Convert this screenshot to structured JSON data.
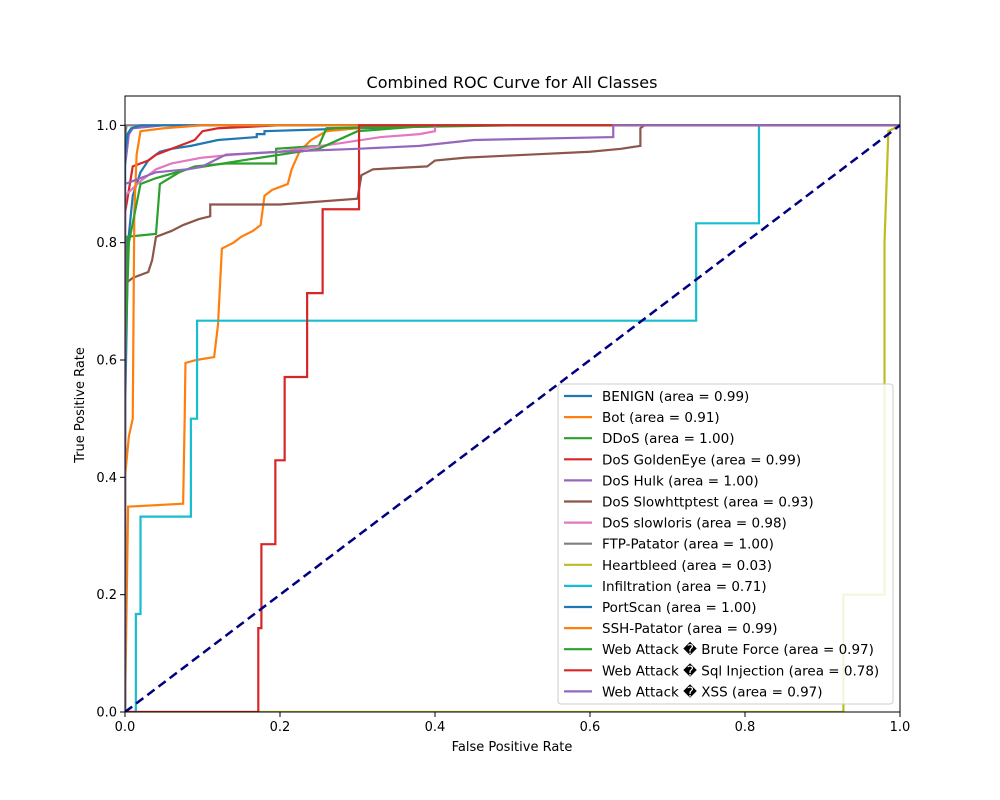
{
  "chart_data": {
    "type": "line",
    "title": "Combined ROC Curve for All Classes",
    "xlabel": "False Positive Rate",
    "ylabel": "True Positive Rate",
    "xlim": [
      0.0,
      1.0
    ],
    "ylim": [
      0.0,
      1.05
    ],
    "xticks": [
      "0.0",
      "0.2",
      "0.4",
      "0.6",
      "0.8",
      "1.0"
    ],
    "yticks": [
      "0.0",
      "0.2",
      "0.4",
      "0.6",
      "0.8",
      "1.0"
    ],
    "grid": false,
    "legend_position": "lower-right",
    "diagonal": {
      "color": "#000080",
      "style": "dashed",
      "points": [
        [
          0,
          0
        ],
        [
          1,
          1
        ]
      ]
    },
    "series": [
      {
        "name": "BENIGN (area = 0.99)",
        "color": "#1f77b4",
        "points": [
          [
            0,
            0
          ],
          [
            0.0,
            0.5
          ],
          [
            0.004,
            0.8
          ],
          [
            0.01,
            0.88
          ],
          [
            0.02,
            0.92
          ],
          [
            0.03,
            0.94
          ],
          [
            0.045,
            0.955
          ],
          [
            0.06,
            0.96
          ],
          [
            0.085,
            0.965
          ],
          [
            0.12,
            0.975
          ],
          [
            0.17,
            0.98
          ],
          [
            0.17,
            0.985
          ],
          [
            0.18,
            0.985
          ],
          [
            0.18,
            0.99
          ],
          [
            0.3,
            0.995
          ],
          [
            0.45,
            1.0
          ],
          [
            1,
            1
          ]
        ]
      },
      {
        "name": "Bot (area = 0.91)",
        "color": "#ff7f0e",
        "points": [
          [
            0,
            0
          ],
          [
            0.004,
            0.35
          ],
          [
            0.075,
            0.355
          ],
          [
            0.077,
            0.5
          ],
          [
            0.078,
            0.595
          ],
          [
            0.092,
            0.6
          ],
          [
            0.115,
            0.605
          ],
          [
            0.12,
            0.66
          ],
          [
            0.125,
            0.79
          ],
          [
            0.14,
            0.8
          ],
          [
            0.15,
            0.81
          ],
          [
            0.165,
            0.82
          ],
          [
            0.175,
            0.83
          ],
          [
            0.18,
            0.88
          ],
          [
            0.19,
            0.89
          ],
          [
            0.2,
            0.895
          ],
          [
            0.21,
            0.9
          ],
          [
            0.215,
            0.925
          ],
          [
            0.225,
            0.955
          ],
          [
            0.24,
            0.975
          ],
          [
            0.26,
            0.99
          ],
          [
            0.3,
            0.995
          ],
          [
            0.35,
            1.0
          ],
          [
            1,
            1
          ]
        ]
      },
      {
        "name": "DDoS (area = 1.00)",
        "color": "#2ca02c",
        "points": [
          [
            0,
            0
          ],
          [
            0.0,
            0.6
          ],
          [
            0.002,
            0.81
          ],
          [
            0.04,
            0.815
          ],
          [
            0.045,
            0.9
          ],
          [
            0.07,
            0.92
          ],
          [
            0.09,
            0.93
          ],
          [
            0.13,
            0.935
          ],
          [
            0.195,
            0.935
          ],
          [
            0.195,
            0.96
          ],
          [
            0.25,
            0.965
          ],
          [
            0.26,
            0.995
          ],
          [
            0.5,
            1.0
          ],
          [
            1,
            1
          ]
        ]
      },
      {
        "name": "DoS GoldenEye (area = 0.99)",
        "color": "#d62728",
        "points": [
          [
            0,
            0
          ],
          [
            0.0,
            0.85
          ],
          [
            0.01,
            0.93
          ],
          [
            0.03,
            0.94
          ],
          [
            0.04,
            0.95
          ],
          [
            0.07,
            0.965
          ],
          [
            0.09,
            0.975
          ],
          [
            0.1,
            0.99
          ],
          [
            0.12,
            0.995
          ],
          [
            0.2,
            1.0
          ],
          [
            1,
            1
          ]
        ]
      },
      {
        "name": "DoS Hulk (area = 1.00)",
        "color": "#9467bd",
        "points": [
          [
            0,
            0
          ],
          [
            0.0,
            0.93
          ],
          [
            0.005,
            0.985
          ],
          [
            0.01,
            0.995
          ],
          [
            0.05,
            1.0
          ],
          [
            1,
            1
          ]
        ]
      },
      {
        "name": "DoS Slowhttptest (area = 0.93)",
        "color": "#8c564b",
        "points": [
          [
            0,
            0
          ],
          [
            0.0,
            0.73
          ],
          [
            0.01,
            0.74
          ],
          [
            0.03,
            0.75
          ],
          [
            0.035,
            0.77
          ],
          [
            0.04,
            0.81
          ],
          [
            0.06,
            0.82
          ],
          [
            0.075,
            0.83
          ],
          [
            0.095,
            0.84
          ],
          [
            0.11,
            0.845
          ],
          [
            0.11,
            0.865
          ],
          [
            0.2,
            0.865
          ],
          [
            0.25,
            0.87
          ],
          [
            0.3,
            0.875
          ],
          [
            0.305,
            0.915
          ],
          [
            0.32,
            0.925
          ],
          [
            0.39,
            0.93
          ],
          [
            0.4,
            0.94
          ],
          [
            0.44,
            0.945
          ],
          [
            0.52,
            0.95
          ],
          [
            0.6,
            0.955
          ],
          [
            0.64,
            0.96
          ],
          [
            0.665,
            0.965
          ],
          [
            0.665,
            0.995
          ],
          [
            0.67,
            1.0
          ],
          [
            1,
            1
          ]
        ]
      },
      {
        "name": "DoS slowloris (area = 0.98)",
        "color": "#e377c2",
        "points": [
          [
            0,
            0
          ],
          [
            0.0,
            0.88
          ],
          [
            0.02,
            0.905
          ],
          [
            0.04,
            0.925
          ],
          [
            0.06,
            0.935
          ],
          [
            0.1,
            0.945
          ],
          [
            0.14,
            0.95
          ],
          [
            0.2,
            0.955
          ],
          [
            0.28,
            0.97
          ],
          [
            0.33,
            0.98
          ],
          [
            0.38,
            0.985
          ],
          [
            0.4,
            0.99
          ],
          [
            0.4,
            1.0
          ],
          [
            1,
            1
          ]
        ]
      },
      {
        "name": "FTP-Patator (area = 1.00)",
        "color": "#7f7f7f",
        "points": [
          [
            0,
            0
          ],
          [
            0.0,
            0.98
          ],
          [
            0.002,
            1.0
          ],
          [
            1,
            1
          ]
        ]
      },
      {
        "name": "Heartbleed (area = 0.03)",
        "color": "#bcbd22",
        "points": [
          [
            0,
            0
          ],
          [
            0.927,
            0.0
          ],
          [
            0.927,
            0.2
          ],
          [
            0.98,
            0.2
          ],
          [
            0.98,
            0.8
          ],
          [
            0.985,
            0.99
          ],
          [
            1,
            1
          ]
        ]
      },
      {
        "name": "Infiltration (area = 0.71)",
        "color": "#17becf",
        "points": [
          [
            0,
            0
          ],
          [
            0.014,
            0.0
          ],
          [
            0.014,
            0.167
          ],
          [
            0.02,
            0.167
          ],
          [
            0.02,
            0.333
          ],
          [
            0.085,
            0.333
          ],
          [
            0.085,
            0.5
          ],
          [
            0.093,
            0.5
          ],
          [
            0.093,
            0.667
          ],
          [
            0.737,
            0.667
          ],
          [
            0.737,
            0.833
          ],
          [
            0.818,
            0.833
          ],
          [
            0.818,
            1.0
          ],
          [
            1,
            1
          ]
        ]
      },
      {
        "name": "PortScan (area = 1.00)",
        "color": "#1f77b4",
        "points": [
          [
            0,
            0
          ],
          [
            0.0,
            0.95
          ],
          [
            0.003,
            0.985
          ],
          [
            0.008,
            0.995
          ],
          [
            0.02,
            1.0
          ],
          [
            1,
            1
          ]
        ]
      },
      {
        "name": "SSH-Patator (area = 0.99)",
        "color": "#ff7f0e",
        "points": [
          [
            0,
            0
          ],
          [
            0.0,
            0.4
          ],
          [
            0.005,
            0.47
          ],
          [
            0.01,
            0.5
          ],
          [
            0.012,
            0.85
          ],
          [
            0.015,
            0.95
          ],
          [
            0.02,
            0.99
          ],
          [
            0.05,
            0.995
          ],
          [
            0.1,
            1.0
          ],
          [
            1,
            1
          ]
        ]
      },
      {
        "name": "Web Attack � Brute Force (area = 0.97)",
        "color": "#2ca02c",
        "points": [
          [
            0,
            0
          ],
          [
            0.0,
            0.6
          ],
          [
            0.005,
            0.8
          ],
          [
            0.02,
            0.9
          ],
          [
            0.04,
            0.91
          ],
          [
            0.08,
            0.925
          ],
          [
            0.15,
            0.94
          ],
          [
            0.25,
            0.96
          ],
          [
            0.3,
            0.99
          ],
          [
            0.4,
            1.0
          ],
          [
            1,
            1
          ]
        ]
      },
      {
        "name": "Web Attack � Sql Injection (area = 0.78)",
        "color": "#d62728",
        "points": [
          [
            0,
            0
          ],
          [
            0.172,
            0.0
          ],
          [
            0.172,
            0.143
          ],
          [
            0.176,
            0.143
          ],
          [
            0.176,
            0.286
          ],
          [
            0.194,
            0.286
          ],
          [
            0.194,
            0.429
          ],
          [
            0.206,
            0.429
          ],
          [
            0.206,
            0.571
          ],
          [
            0.235,
            0.571
          ],
          [
            0.235,
            0.714
          ],
          [
            0.255,
            0.714
          ],
          [
            0.255,
            0.857
          ],
          [
            0.302,
            0.857
          ],
          [
            0.302,
            1.0
          ],
          [
            1,
            1
          ]
        ]
      },
      {
        "name": "Web Attack � XSS (area = 0.97)",
        "color": "#9467bd",
        "points": [
          [
            0,
            0
          ],
          [
            0.0,
            0.9
          ],
          [
            0.01,
            0.905
          ],
          [
            0.02,
            0.91
          ],
          [
            0.04,
            0.92
          ],
          [
            0.08,
            0.925
          ],
          [
            0.1,
            0.93
          ],
          [
            0.13,
            0.95
          ],
          [
            0.2,
            0.955
          ],
          [
            0.3,
            0.96
          ],
          [
            0.38,
            0.965
          ],
          [
            0.45,
            0.975
          ],
          [
            0.63,
            0.98
          ],
          [
            0.63,
            1.0
          ],
          [
            1,
            1
          ]
        ]
      }
    ]
  }
}
